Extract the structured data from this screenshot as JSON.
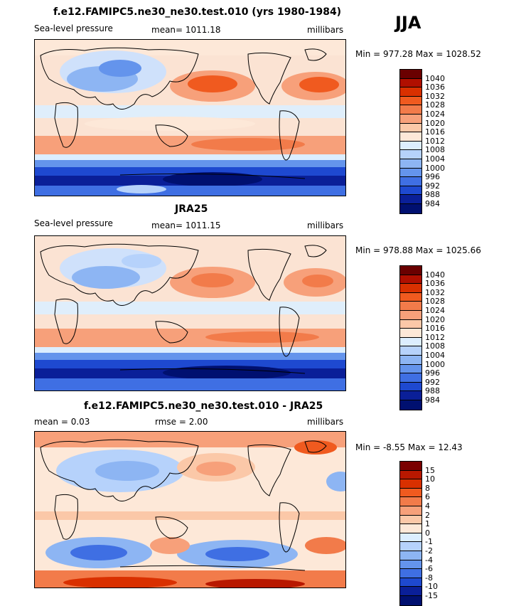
{
  "season": "JJA",
  "panels": [
    {
      "title": "f.e12.FAMIPC5.ne30_ne30.test.010 (yrs 1980-1984)",
      "left_label": "Sea-level pressure",
      "center_label": "mean=  1011.18",
      "right_label": "millibars",
      "minmax": "Min = 977.28  Max = 1028.52",
      "levels": [
        "1040",
        "1036",
        "1032",
        "1028",
        "1024",
        "1020",
        "1016",
        "1012",
        "1008",
        "1004",
        "1000",
        "996",
        "992",
        "988",
        "984"
      ],
      "colors": [
        "#6a0000",
        "#b00f00",
        "#d93000",
        "#f05a1f",
        "#f27b4a",
        "#f7a07a",
        "#fbc8a8",
        "#fde8d8",
        "#dceeff",
        "#b6d2fb",
        "#8db5f3",
        "#6494ec",
        "#3f6fe3",
        "#1e49d0",
        "#0a1f98",
        "#001070"
      ]
    },
    {
      "title": "JRA25",
      "left_label": "Sea-level pressure",
      "center_label": "mean=  1011.15",
      "right_label": "millibars",
      "minmax": "Min = 978.88  Max = 1025.66",
      "levels": [
        "1040",
        "1036",
        "1032",
        "1028",
        "1024",
        "1020",
        "1016",
        "1012",
        "1008",
        "1004",
        "1000",
        "996",
        "992",
        "988",
        "984"
      ],
      "colors": [
        "#6a0000",
        "#b00f00",
        "#d93000",
        "#f05a1f",
        "#f27b4a",
        "#f7a07a",
        "#fbc8a8",
        "#fde8d8",
        "#dceeff",
        "#b6d2fb",
        "#8db5f3",
        "#6494ec",
        "#3f6fe3",
        "#1e49d0",
        "#0a1f98",
        "#001070"
      ]
    },
    {
      "title": "f.e12.FAMIPC5.ne30_ne30.test.010 - JRA25",
      "left_label": "mean =    0.03",
      "center_label": "rmse =    2.00",
      "right_label": "millibars",
      "minmax": "Min =  -8.55  Max =   12.43",
      "levels": [
        "15",
        "10",
        "8",
        "6",
        "4",
        "2",
        "1",
        "0",
        "-1",
        "-2",
        "-4",
        "-6",
        "-8",
        "-10",
        "-15"
      ],
      "colors": [
        "#7a0000",
        "#b81800",
        "#d93000",
        "#f05a1f",
        "#f27b4a",
        "#f7a07a",
        "#fbc8a8",
        "#fde8d8",
        "#dceeff",
        "#b6d2fb",
        "#8db5f3",
        "#6494ec",
        "#3f6fe3",
        "#1e49d0",
        "#0a1f98",
        "#001070"
      ]
    }
  ]
}
